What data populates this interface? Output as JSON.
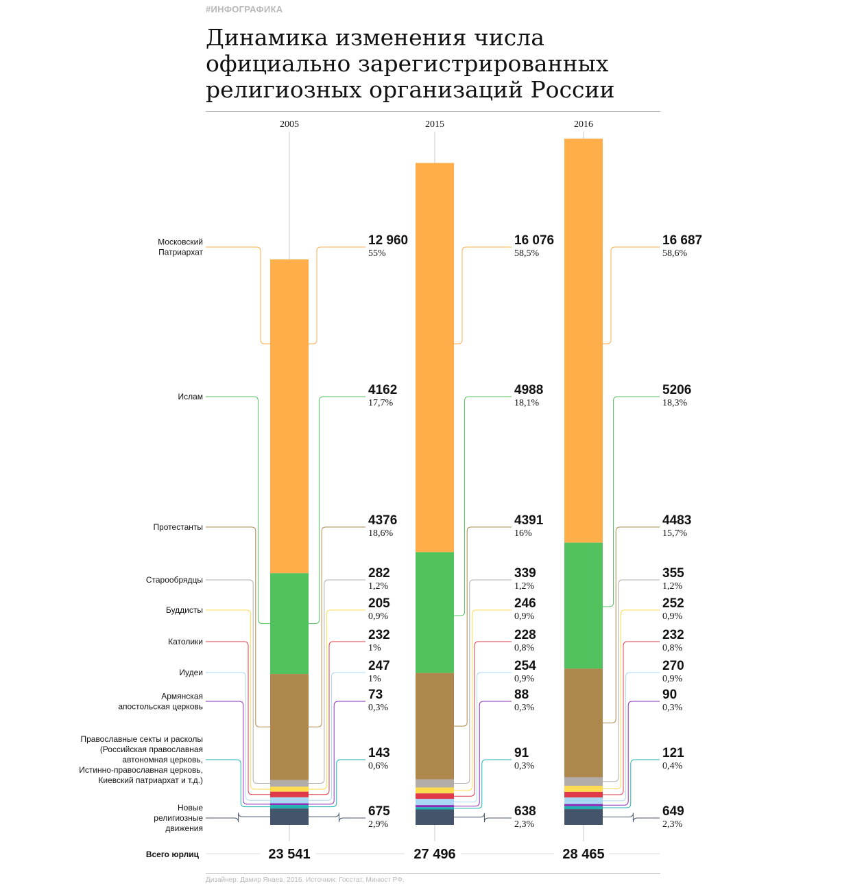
{
  "header": {
    "tag": "#ИНФОГРАФИКА",
    "title_lines": [
      "Динамика изменения числа",
      "официально зарегистрированных",
      "религиозных организаций России"
    ]
  },
  "footer": {
    "credit": "Дизайнер: Дамир Янаев, 2016. Источник: Госстат, Минюст РФ."
  },
  "chart_data": {
    "type": "bar",
    "stacked": true,
    "categories": [
      "2005",
      "2015",
      "2016"
    ],
    "totals_label": "Всего юрлиц",
    "totals": [
      "23 541",
      "27 496",
      "28 465"
    ],
    "series": [
      {
        "name": "Московский Патриархат",
        "label_lines": [
          "Московский",
          "Патриархат"
        ],
        "color": "#FFAE4A",
        "values": [
          12960,
          16076,
          16687
        ],
        "value_labels": [
          "12 960",
          "16 076",
          "16 687"
        ],
        "pct_labels": [
          "55%",
          "58,5%",
          "58,6%"
        ]
      },
      {
        "name": "Ислам",
        "label_lines": [
          "Ислам"
        ],
        "color": "#52C25E",
        "values": [
          4162,
          4988,
          5206
        ],
        "value_labels": [
          "4162",
          "4988",
          "5206"
        ],
        "pct_labels": [
          "17,7%",
          "18,1%",
          "18,3%"
        ]
      },
      {
        "name": "Протестанты",
        "label_lines": [
          "Протестанты"
        ],
        "color": "#AD874B",
        "values": [
          4376,
          4391,
          4483
        ],
        "value_labels": [
          "4376",
          "4391",
          "4483"
        ],
        "pct_labels": [
          "18,6%",
          "16%",
          "15,7%"
        ]
      },
      {
        "name": "Старообрядцы",
        "label_lines": [
          "Старообрядцы"
        ],
        "color": "#B3ADAA",
        "values": [
          282,
          339,
          355
        ],
        "value_labels": [
          "282",
          "339",
          "355"
        ],
        "pct_labels": [
          "1,2%",
          "1,2%",
          "1,2%"
        ]
      },
      {
        "name": "Буддисты",
        "label_lines": [
          "Буддисты"
        ],
        "color": "#FFDB4F",
        "values": [
          205,
          246,
          252
        ],
        "value_labels": [
          "205",
          "246",
          "252"
        ],
        "pct_labels": [
          "0,9%",
          "0,9%",
          "0,9%"
        ]
      },
      {
        "name": "Католики",
        "label_lines": [
          "Католики"
        ],
        "color": "#E0394A",
        "values": [
          232,
          228,
          232
        ],
        "value_labels": [
          "232",
          "228",
          "232"
        ],
        "pct_labels": [
          "1%",
          "0,8%",
          "0,8%"
        ]
      },
      {
        "name": "Иудеи",
        "label_lines": [
          "Иудеи"
        ],
        "color": "#A9D8F5",
        "values": [
          247,
          254,
          270
        ],
        "value_labels": [
          "247",
          "254",
          "270"
        ],
        "pct_labels": [
          "1%",
          "0,9%",
          "0,9%"
        ]
      },
      {
        "name": "Армянская апостольская церковь",
        "label_lines": [
          "Армянская",
          "апостольская церковь"
        ],
        "color": "#8B2BB8",
        "values": [
          73,
          88,
          90
        ],
        "value_labels": [
          "73",
          "88",
          "90"
        ],
        "pct_labels": [
          "0,3%",
          "0,3%",
          "0,3%"
        ]
      },
      {
        "name": "Православные секты и расколы",
        "label_lines": [
          "Православные секты и расколы",
          "(Российская православная",
          "автономная церковь,",
          "Истинно-православная церковь,",
          "Киевский патриархат и т.д.)"
        ],
        "color": "#22B2B2",
        "values": [
          143,
          91,
          121
        ],
        "value_labels": [
          "143",
          "91",
          "121"
        ],
        "pct_labels": [
          "0,6%",
          "0,3%",
          "0,4%"
        ]
      },
      {
        "name": "Новые религиозные движения",
        "label_lines": [
          "Новые",
          "религиозные",
          "движения"
        ],
        "color": "#44546A",
        "values": [
          675,
          638,
          649
        ],
        "value_labels": [
          "675",
          "638",
          "649"
        ],
        "pct_labels": [
          "2,9%",
          "2,3%",
          "2,3%"
        ]
      }
    ]
  }
}
